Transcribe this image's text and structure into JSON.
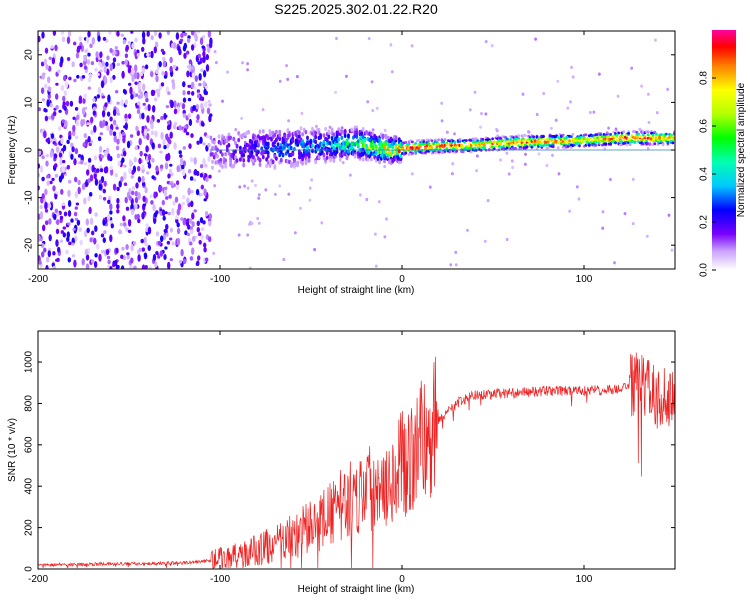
{
  "title": "S225.2025.302.01.22.R20",
  "colors": {
    "snr_line": "#ee2222",
    "frame": "#000000",
    "guide": "#2f7fa0"
  },
  "chart_data": [
    {
      "type": "heatmap",
      "name": "spectrogram",
      "xlabel": "Height of straight line (km)",
      "ylabel": "Frequency (Hz)",
      "xlim": [
        -200,
        150
      ],
      "ylim": [
        -25,
        25
      ],
      "xticks": [
        -200,
        -100,
        0,
        100
      ],
      "yticks": [
        -20,
        -10,
        0,
        10,
        20
      ],
      "colorbar": {
        "label": "Normalized spectral amplitude",
        "range": [
          0.0,
          1.0
        ],
        "ticks": [
          0.0,
          0.2,
          0.4,
          0.6,
          0.8
        ],
        "tick_labels": [
          "0.0",
          "0.2",
          "0.4",
          "0.6",
          "0.8"
        ],
        "colormap": "rainbow"
      },
      "noise_region_x": [
        -200,
        -105
      ],
      "ridge": {
        "x": [
          -105,
          -80,
          -60,
          -40,
          -25,
          -15,
          -5,
          5,
          20,
          40,
          60,
          80,
          100,
          120,
          140,
          150
        ],
        "freq": [
          0.0,
          0.2,
          0.5,
          1.0,
          1.5,
          0.5,
          0.0,
          0.5,
          0.8,
          1.0,
          1.5,
          1.8,
          2.0,
          2.5,
          2.5,
          2.5
        ],
        "amplitude": [
          0.15,
          0.25,
          0.35,
          0.4,
          0.6,
          0.75,
          0.85,
          0.95,
          0.95,
          0.85,
          0.9,
          0.95,
          0.75,
          0.95,
          0.9,
          0.8
        ]
      }
    },
    {
      "type": "line",
      "name": "snr",
      "xlabel": "Height of straight line (km)",
      "ylabel": "SNR (10 * v/v)",
      "xlim": [
        -200,
        150
      ],
      "ylim": [
        0,
        1150
      ],
      "xticks": [
        -200,
        -100,
        0,
        100
      ],
      "yticks": [
        0,
        200,
        400,
        600,
        800,
        1000
      ],
      "x": [
        -200,
        -150,
        -120,
        -105,
        -90,
        -80,
        -70,
        -60,
        -50,
        -40,
        -30,
        -20,
        -10,
        0,
        10,
        20,
        30,
        40,
        60,
        80,
        100,
        120,
        130,
        140,
        150
      ],
      "y": [
        20,
        25,
        30,
        40,
        60,
        90,
        120,
        160,
        200,
        260,
        330,
        390,
        440,
        500,
        600,
        720,
        800,
        840,
        850,
        860,
        860,
        870,
        900,
        820,
        860
      ]
    }
  ]
}
